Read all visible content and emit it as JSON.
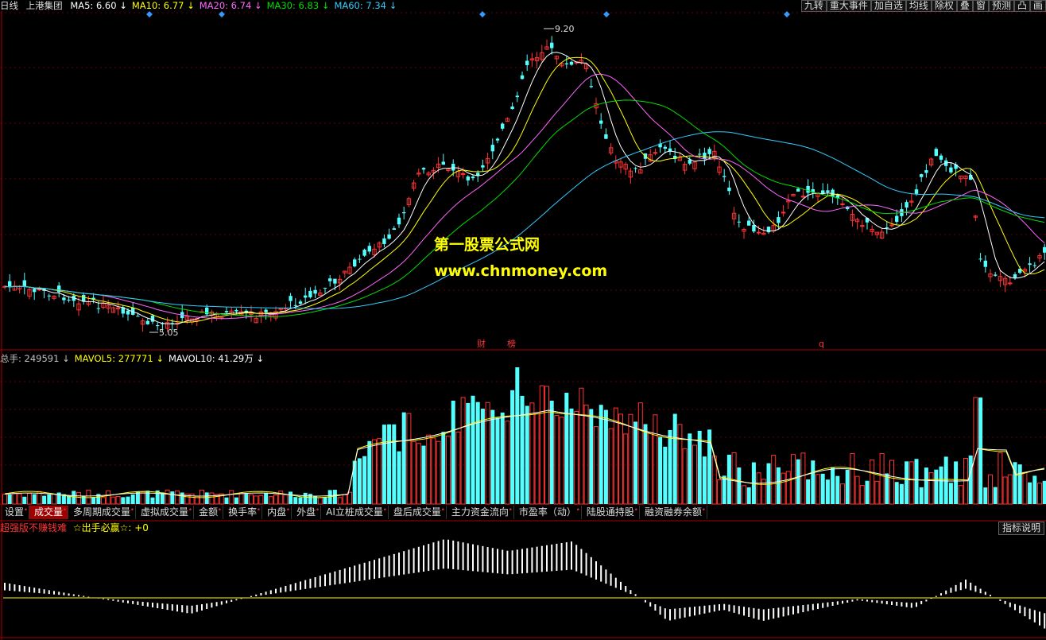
{
  "header": {
    "period": "日线",
    "stock": "上港集团",
    "ma": [
      {
        "label": "MA5: 6.60",
        "arrow": "↓",
        "color": "#ffffff"
      },
      {
        "label": "MA10: 6.77",
        "arrow": "↓",
        "color": "#ffff00"
      },
      {
        "label": "MA20: 6.74",
        "arrow": "↓",
        "color": "#ff66ff"
      },
      {
        "label": "MA30: 6.83",
        "arrow": "↓",
        "color": "#00dd00"
      },
      {
        "label": "MA60: 7.34",
        "arrow": "↓",
        "color": "#33ccff"
      }
    ]
  },
  "toolbar": [
    "九转",
    "重大事件",
    "加自选",
    "均线",
    "除权",
    "叠",
    "窗",
    "预测",
    "凸",
    "画"
  ],
  "price_chart": {
    "high_label": "9.20",
    "low_label": "5.05",
    "markers": [
      "财",
      "榜",
      "q"
    ]
  },
  "watermark": {
    "line1": "第一股票公式网",
    "line2": "www.chnmoney.com"
  },
  "volume_header": [
    {
      "label": "总手: 249591",
      "arrow": "↓",
      "color": "#c0c0c0"
    },
    {
      "label": "MAVOL5: 277771",
      "arrow": "↓",
      "color": "#ffff00"
    },
    {
      "label": "MAVOL10: 41.29万",
      "arrow": "↓",
      "color": "#ffffff"
    }
  ],
  "tabs": [
    "设置",
    "成交量",
    "多周期成交量",
    "虚拟成交量",
    "金额",
    "换手率",
    "内盘",
    "外盘",
    "AI立桩成交量",
    "盘后成交量",
    "主力资金流向",
    "市盈率（动）",
    "陆股通持股",
    "融资融券余额"
  ],
  "active_tab": 1,
  "indicator": {
    "name": "超强版不赚钱难",
    "value_label": "☆出手必赢☆: +0",
    "help": "指标说明"
  },
  "colors": {
    "up": "#ff3333",
    "down": "#54ffff",
    "ma5": "#ffffff",
    "ma10": "#ffff00",
    "ma20": "#ff66ff",
    "ma30": "#00dd00",
    "ma60": "#33ccff"
  }
}
